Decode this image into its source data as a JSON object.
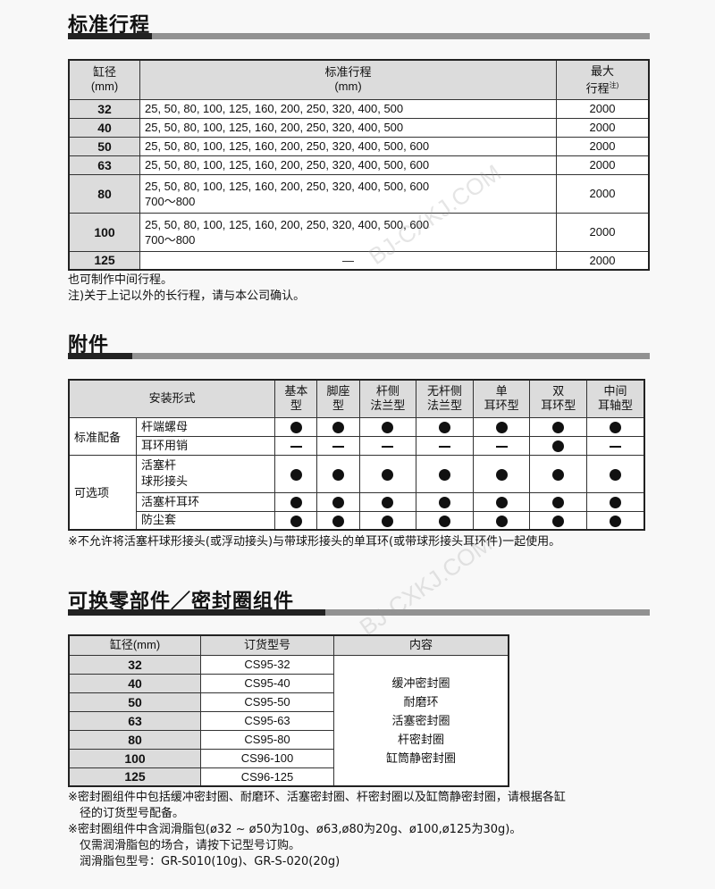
{
  "section1": {
    "title": "标准行程",
    "headers": {
      "bore": "缸径",
      "bore_unit": "(mm)",
      "stroke": "标准行程",
      "stroke_unit": "(mm)",
      "max1": "最大",
      "max2": "行程",
      "max_sup": "注)"
    },
    "rows": [
      {
        "bore": "32",
        "strokes": [
          "25, 50, 80, 100, 125, 160, 200, 250, 320, 400, 500"
        ],
        "max": "2000"
      },
      {
        "bore": "40",
        "strokes": [
          "25, 50, 80, 100, 125, 160, 200, 250, 320, 400, 500"
        ],
        "max": "2000"
      },
      {
        "bore": "50",
        "strokes": [
          "25, 50, 80, 100, 125, 160, 200, 250, 320, 400, 500, 600"
        ],
        "max": "2000"
      },
      {
        "bore": "63",
        "strokes": [
          "25, 50, 80, 100, 125, 160, 200, 250, 320, 400, 500, 600"
        ],
        "max": "2000"
      },
      {
        "bore": "80",
        "strokes": [
          "25, 50, 80, 100, 125, 160, 200, 250, 320, 400, 500, 600",
          "700～800"
        ],
        "max": "2000"
      },
      {
        "bore": "100",
        "strokes": [
          "25, 50, 80, 100, 125, 160, 200, 250, 320, 400, 500, 600",
          "700～800"
        ],
        "max": "2000"
      },
      {
        "bore": "125",
        "strokes": [
          "—"
        ],
        "max": "2000"
      }
    ],
    "notes": [
      "也可制作中间行程。",
      "注)关于上记以外的长行程，请与本公司确认。"
    ]
  },
  "section2": {
    "title": "附件",
    "header": "安装形式",
    "columns": [
      [
        "基本",
        "型"
      ],
      [
        "脚座",
        "型"
      ],
      [
        "杆侧",
        "法兰型"
      ],
      [
        "无杆侧",
        "法兰型"
      ],
      [
        "单",
        "耳环型"
      ],
      [
        "双",
        "耳环型"
      ],
      [
        "中间",
        "耳轴型"
      ]
    ],
    "groups": [
      {
        "label": "标准配备",
        "items": [
          {
            "name": [
              "杆端螺母"
            ],
            "marks": [
              "dot",
              "dot",
              "dot",
              "dot",
              "dot",
              "dot",
              "dot"
            ]
          },
          {
            "name": [
              "耳环用销"
            ],
            "marks": [
              "dash",
              "dash",
              "dash",
              "dash",
              "dash",
              "dot",
              "dash"
            ]
          }
        ]
      },
      {
        "label": "可选项",
        "items": [
          {
            "name": [
              "活塞杆",
              "球形接头"
            ],
            "marks": [
              "dot",
              "dot",
              "dot",
              "dot",
              "dot",
              "dot",
              "dot"
            ]
          },
          {
            "name": [
              "活塞杆耳环"
            ],
            "marks": [
              "dot",
              "dot",
              "dot",
              "dot",
              "dot",
              "dot",
              "dot"
            ]
          },
          {
            "name": [
              "防尘套"
            ],
            "marks": [
              "dot",
              "dot",
              "dot",
              "dot",
              "dot",
              "dot",
              "dot"
            ]
          }
        ]
      }
    ],
    "note": "※不允许将活塞杆球形接头(或浮动接头)与带球形接头的单耳环(或带球形接头耳环件)一起使用。"
  },
  "section3": {
    "title": "可换零部件／密封圈组件",
    "headers": [
      "缸径(mm)",
      "订货型号",
      "内容"
    ],
    "rows": [
      {
        "bore": "32",
        "model": "CS95-32"
      },
      {
        "bore": "40",
        "model": "CS95-40"
      },
      {
        "bore": "50",
        "model": "CS95-50"
      },
      {
        "bore": "63",
        "model": "CS95-63"
      },
      {
        "bore": "80",
        "model": "CS95-80"
      },
      {
        "bore": "100",
        "model": "CS96-100"
      },
      {
        "bore": "125",
        "model": "CS96-125"
      }
    ],
    "contents": [
      "缓冲密封圈",
      "耐磨环",
      "活塞密封圈",
      "杆密封圈",
      "缸筒静密封圈"
    ],
    "notes": [
      "※密封圈组件中包括缓冲密封圈、耐磨环、活塞密封圈、杆密封圈以及缸筒静密封圈，请根据各缸",
      "　径的订货型号配备。",
      "※密封圈组件中含润滑脂包(ø32 ~ ø50为10g、ø63,ø80为20g、ø100,ø125为30g)。",
      "　仅需润滑脂包的场合，请按下记型号订购。",
      "　润滑脂包型号：GR-S010(10g)、GR-S-020(20g)"
    ]
  },
  "watermark": "BJ-CXKJ.COM"
}
